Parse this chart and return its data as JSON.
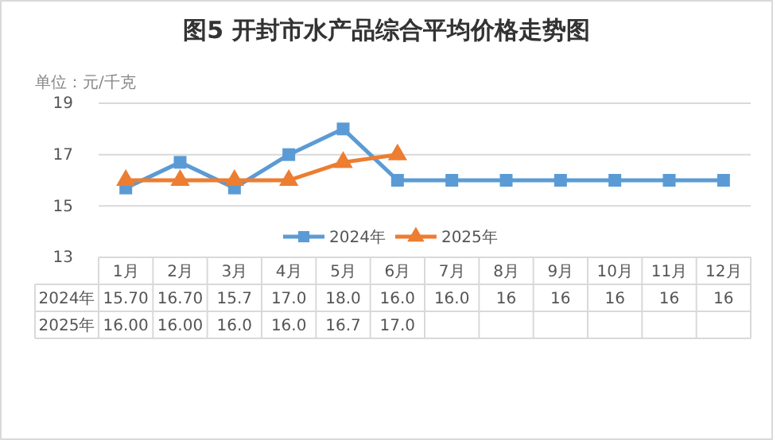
{
  "chart_data": {
    "type": "line",
    "title": "图5  开封市水产品综合平均价格走势图",
    "ylabel": "单位：元/千克",
    "categories": [
      "1月",
      "2月",
      "3月",
      "4月",
      "5月",
      "6月",
      "7月",
      "8月",
      "9月",
      "10月",
      "11月",
      "12月"
    ],
    "series": [
      {
        "name": "2024年",
        "color": "#5b9bd5",
        "marker": "square",
        "values": [
          15.7,
          16.7,
          15.7,
          17.0,
          18.0,
          16.0,
          16.0,
          16,
          16,
          16,
          16,
          16
        ],
        "value_labels": [
          "15.70",
          "16.70",
          "15.7",
          "17.0",
          "18.0",
          "16.0",
          "16.0",
          "16",
          "16",
          "16",
          "16",
          "16"
        ]
      },
      {
        "name": "2025年",
        "color": "#ed7d31",
        "marker": "triangle",
        "values": [
          16.0,
          16.0,
          16.0,
          16.0,
          16.7,
          17.0,
          null,
          null,
          null,
          null,
          null,
          null
        ],
        "value_labels": [
          "16.00",
          "16.00",
          "16.0",
          "16.0",
          "16.7",
          "17.0",
          null,
          null,
          null,
          null,
          null,
          null
        ]
      }
    ],
    "ylim": [
      13,
      19
    ],
    "yticks": [
      13,
      15,
      17,
      19
    ],
    "grid": "y",
    "legend": "bottom",
    "line_style": "solid"
  }
}
